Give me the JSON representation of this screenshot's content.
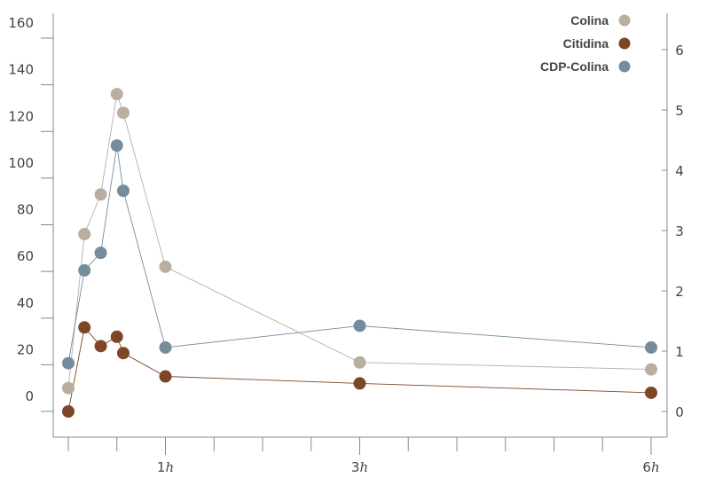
{
  "chart_data": {
    "type": "line",
    "x": [
      0,
      0.083,
      0.167,
      0.25,
      0.283,
      0.5,
      1.5,
      3.0
    ],
    "x_ticks": [
      {
        "value": 0.5,
        "number": "1",
        "unit": "h"
      },
      {
        "value": 1.5,
        "number": "3",
        "unit": "h"
      },
      {
        "value": 3.0,
        "number": "6",
        "unit": "h"
      }
    ],
    "x_minor_step": 0.25,
    "xlim": [
      0,
      3.0
    ],
    "y_left_ticks": [
      0,
      20,
      40,
      60,
      80,
      100,
      120,
      140,
      160
    ],
    "y_left_lim": [
      0,
      160
    ],
    "y_right_ticks": [
      0,
      1,
      2,
      3,
      4,
      5,
      6
    ],
    "y_right_lim": [
      0,
      6
    ],
    "grid": false,
    "legend_position": "top-right",
    "series": [
      {
        "name": "Colina",
        "axis": "left",
        "color": "#b9aea0",
        "values": [
          10,
          76,
          93,
          136,
          128,
          62,
          21,
          18
        ]
      },
      {
        "name": "Citidina",
        "axis": "left",
        "color": "#7e4626",
        "values": [
          0,
          36,
          28,
          32,
          25,
          15,
          12,
          8
        ]
      },
      {
        "name": "CDP-Colina",
        "axis": "right",
        "color": "#758c9d",
        "values": [
          0.8,
          2.34,
          2.63,
          4.41,
          3.66,
          1.06,
          1.42,
          1.06
        ]
      }
    ]
  }
}
